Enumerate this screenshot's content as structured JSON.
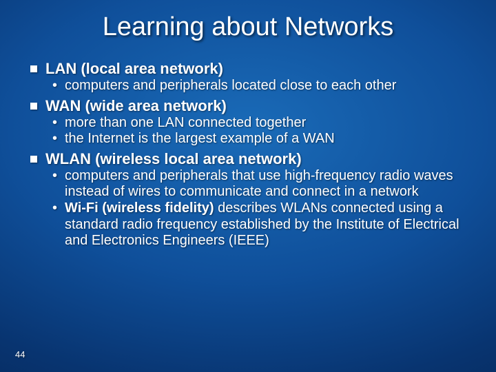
{
  "title": "Learning about Networks",
  "title_fontsize": 38,
  "title_color": "#ffffff",
  "heading_fontsize": 22,
  "sub_fontsize": 20,
  "text_color": "#ffffff",
  "bullet_color": "#ffffff",
  "background_gradient": [
    "#1a6bb8",
    "#0f4f9a",
    "#083470",
    "#042350"
  ],
  "sections": [
    {
      "heading": "LAN (local area network)",
      "items": [
        "computers and peripherals located close to each other"
      ]
    },
    {
      "heading": "WAN (wide area network)",
      "items": [
        "more than one LAN connected together",
        "the Internet is the largest example of a WAN"
      ]
    },
    {
      "heading": "WLAN (wireless local area network)",
      "items": [
        "computers and peripherals that use high-frequency radio waves instead of wires to communicate and connect in a network",
        "<span class=\"bold\">Wi-Fi (wireless fidelity)</span> describes WLANs connected using a standard radio frequency established by the Institute of Electrical and Electronics Engineers (IEEE)"
      ]
    }
  ],
  "page_number": "44",
  "page_number_fontsize": 13
}
